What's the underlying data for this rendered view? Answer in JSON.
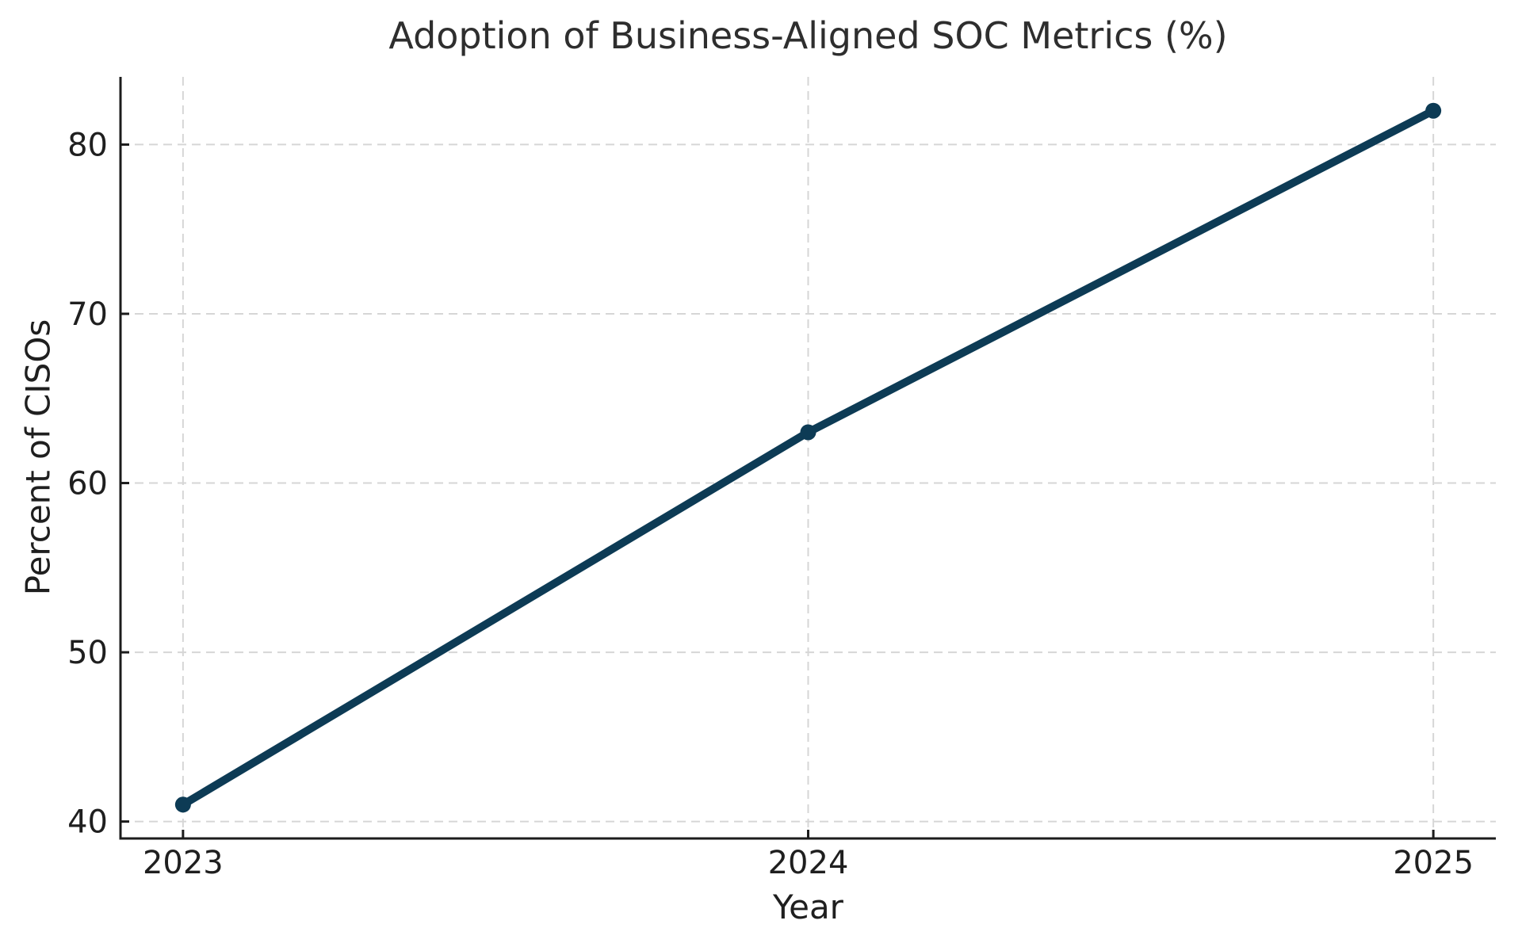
{
  "chart_data": {
    "type": "line",
    "title": "Adoption of Business-Aligned SOC Metrics (%)",
    "xlabel": "Year",
    "ylabel": "Percent of CISOs",
    "x": [
      2023,
      2024,
      2025
    ],
    "values": [
      41,
      63,
      82
    ],
    "xticks": [
      2023,
      2024,
      2025
    ],
    "yticks": [
      40,
      50,
      60,
      70,
      80
    ],
    "xlim": [
      2022.9,
      2025.1
    ],
    "ylim": [
      39,
      84
    ],
    "grid": true,
    "grid_style": "dashed",
    "legend_position": "none",
    "marker": "circle",
    "colors": {
      "line": "#0d3b55",
      "grid": "#d6d6d6",
      "axis": "#1c1c1c",
      "text": "#1f1f1f",
      "title": "#2e2e2e",
      "background": "#ffffff"
    }
  }
}
